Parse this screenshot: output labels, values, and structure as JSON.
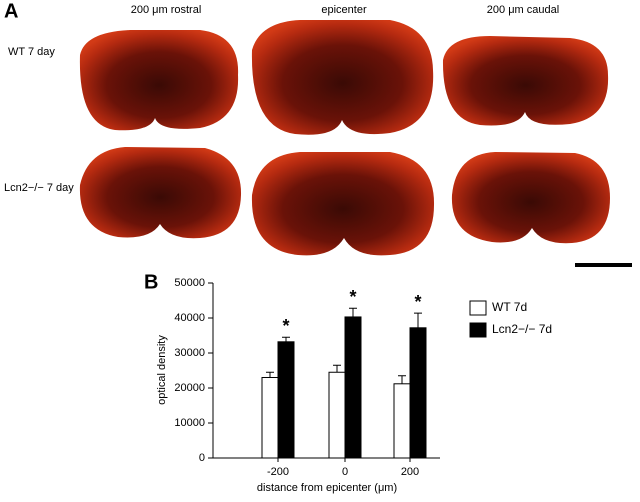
{
  "panel_a": {
    "label": "A",
    "columns": [
      "200 μm rostral",
      "epicenter",
      "200 μm caudal"
    ],
    "rows": [
      "WT 7 day",
      "Lcn2−/− 7 day"
    ]
  },
  "chart_data": {
    "type": "bar",
    "panel_label": "B",
    "x_label": "distance from epicenter (μm)",
    "y_label": "optical density",
    "categories": [
      "-200",
      "0",
      "200"
    ],
    "series": [
      {
        "name": "WT 7d",
        "color": "#ffffff",
        "values": [
          23000,
          24500,
          21200
        ],
        "errors": [
          1500,
          2000,
          2300
        ]
      },
      {
        "name": "Lcn2−/− 7d",
        "color": "#000000",
        "values": [
          33200,
          40300,
          37200
        ],
        "errors": [
          1300,
          2500,
          4200
        ]
      }
    ],
    "annotations": [
      "*",
      "*",
      "*"
    ],
    "ylim": [
      0,
      50000
    ],
    "yticks": [
      0,
      10000,
      20000,
      30000,
      40000,
      50000
    ],
    "legend": "upper right"
  }
}
